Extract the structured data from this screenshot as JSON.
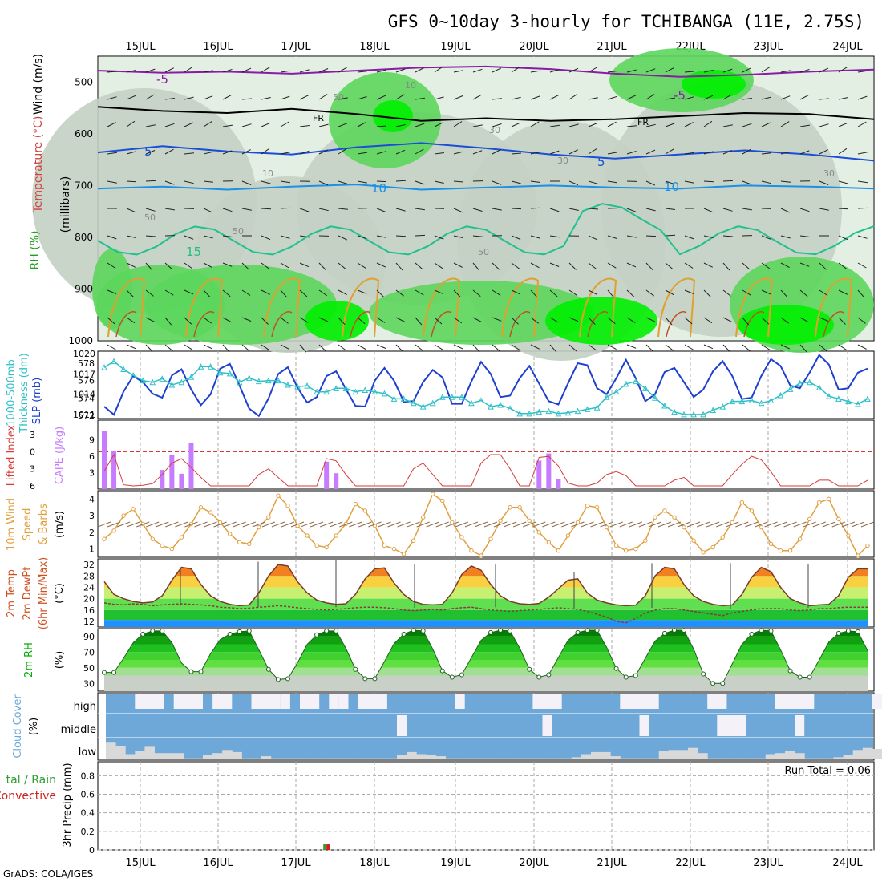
{
  "title": "GFS 0~10day 3-hourly for TCHIBANGA (11E, 2.75S)",
  "credit": "GrADS: COLA/IGES",
  "dates": [
    "15JUL",
    "16JUL",
    "17JUL",
    "18JUL",
    "19JUL",
    "20JUL",
    "21JUL",
    "22JUL",
    "23JUL",
    "24JUL"
  ],
  "colors": {
    "rh_light": "#e4efe3",
    "rh_mid": "#c3d0c3",
    "rh_green": "#5cd65c",
    "rh_bright": "#00f000",
    "slp": "#1e3fcf",
    "thickness": "#2ec0c8",
    "cape": "#c77cff",
    "li": "#d83a3a",
    "wind": "#e0a040",
    "barb": "#8b6a4a",
    "temp": "#f08020",
    "dew": "#8a3a3a",
    "rh2m": "#00b000",
    "cloud": "#6ea8d8",
    "cloud_low": "#d9d9d9",
    "precip": "#30a030"
  },
  "panel_labels": {
    "upper": {
      "wind": "Wind",
      "unit_ms": "(m/s)",
      "temperature": "Temperature",
      "unit_c": "(°C)",
      "rh": "RH (%)",
      "mb": "(millibars)"
    },
    "thickness": {
      "label": "1000-500mb",
      "label2": "Thickness (dm)",
      "slp": "SLP (mb)"
    },
    "cape": {
      "li": "Lifted Index",
      "cape": "CAPE (J/kg)"
    },
    "wind10": {
      "l1": "10m Wind",
      "l2": "Speed",
      "l3": "& Barbs",
      "unit": "(m/s)"
    },
    "temp2m": {
      "l1": "2m Temp",
      "l2": "2m DewPt",
      "l3": "(6hr Min/Max)",
      "unit": "(°C)"
    },
    "rh2m": {
      "l1": "2m RH",
      "unit": "(%)"
    },
    "cloud": {
      "l1": "Cloud Cover",
      "unit": "(%)",
      "high": "high",
      "middle": "middle",
      "low": "low"
    },
    "precip": {
      "l1": "tal / Rain",
      "l2": "Convective",
      "l3": "3hr Precip (mm)",
      "run_total": "Run Total = 0.06"
    }
  },
  "contour_labels": {
    "upper_m5": "-5",
    "fr": "FR",
    "m5": "5",
    "m10": "10",
    "m15": "15",
    "rh10": "10",
    "rh30": "30",
    "rh50": "50"
  },
  "chart_data": [
    {
      "type": "contour",
      "title": "Upper-air RH / Temperature / Wind",
      "ylabel": "millibars",
      "yticks": [
        500,
        600,
        700,
        800,
        900,
        1000
      ],
      "ylim": [
        450,
        1000
      ],
      "isotherms": [
        {
          "label": "-5",
          "p": [
            478,
            482,
            480,
            484,
            478,
            472,
            470,
            475,
            484,
            490,
            486,
            480,
            476
          ]
        },
        {
          "label": "FR",
          "p": [
            548,
            556,
            560,
            552,
            562,
            575,
            570,
            575,
            572,
            566,
            560,
            562,
            572
          ]
        },
        {
          "label": "5",
          "p": [
            636,
            624,
            634,
            640,
            626,
            618,
            628,
            640,
            648,
            640,
            632,
            640,
            652
          ]
        },
        {
          "label": "10",
          "p": [
            706,
            702,
            708,
            702,
            698,
            708,
            704,
            700,
            704,
            706,
            700,
            702,
            706
          ]
        }
      ]
    },
    {
      "type": "line",
      "title": "1000-500mb Thickness & SLP",
      "x_start": 0,
      "x_step_hours": 3,
      "series": [
        {
          "name": "SLP (mb)",
          "axis": "right",
          "values": [
            1012.3,
            1011.1,
            1014.5,
            1016.8,
            1015.9,
            1014.2,
            1013.6,
            1016.9,
            1017.8,
            1014.8,
            1012.5,
            1014.1,
            1017.9,
            1018.6,
            1015.4,
            1012.0,
            1010.9,
            1013.5,
            1017.1,
            1018.1,
            1015.1,
            1012.9,
            1013.7,
            1016.8,
            1017.5,
            1014.9,
            1012.4,
            1012.3,
            1016.1,
            1018.0,
            1016.1,
            1013.0,
            1013.1,
            1015.9,
            1017.7,
            1016.6,
            1012.7,
            1012.7,
            1016.0,
            1018.9,
            1017.1,
            1013.7,
            1013.9,
            1016.5,
            1018.3,
            1015.7,
            1013.1,
            1012.6,
            1015.7,
            1018.7,
            1018.4,
            1015.0,
            1014.1,
            1016.5,
            1019.2,
            1016.5,
            1013.1,
            1014.1,
            1017.4,
            1018.0,
            1015.9,
            1013.7,
            1014.8,
            1017.5,
            1019.0,
            1016.8,
            1013.4,
            1013.6,
            1016.8,
            1019.3,
            1018.3,
            1015.4,
            1015.0,
            1017.3,
            1019.9,
            1018.5,
            1014.8,
            1015.0,
            1017.3,
            1017.9
          ]
        },
        {
          "name": "Thickness (dm)",
          "axis": "left",
          "values": [
            577.5,
            578.2,
            577.3,
            576.6,
            576.0,
            575.8,
            576.2,
            575.5,
            575.8,
            576.4,
            577.6,
            577.6,
            576.9,
            576.8,
            575.8,
            576.3,
            575.9,
            576.0,
            576.0,
            575.5,
            575.3,
            575.4,
            574.7,
            574.7,
            575.1,
            575.1,
            574.7,
            574.9,
            574.7,
            574.5,
            573.9,
            573.9,
            573.4,
            573.0,
            573.4,
            574.1,
            574.1,
            574.1,
            573.4,
            573.7,
            573.0,
            573.2,
            572.8,
            572.2,
            572.2,
            572.4,
            572.5,
            572.2,
            572.3,
            572.5,
            572.7,
            572.9,
            574.1,
            574.7,
            575.6,
            575.9,
            575.1,
            574.0,
            573.1,
            572.4,
            572.1,
            572.1,
            572.1,
            572.6,
            573.0,
            573.6,
            573.6,
            573.7,
            573.4,
            573.7,
            574.3,
            575.0,
            575.7,
            575.8,
            575.2,
            574.2,
            573.9,
            573.6,
            573.3,
            573.9
          ]
        }
      ],
      "ylim_left": [
        572,
        579
      ],
      "ylim_right": [
        1011,
        1020
      ]
    },
    {
      "type": "bar",
      "title": "CAPE and Lifted Index",
      "bars_name": "CAPE (J/kg)",
      "bars": [
        {
          "i": 0,
          "v": 10.6
        },
        {
          "i": 1,
          "v": 7.0
        },
        {
          "i": 6,
          "v": 3.5
        },
        {
          "i": 7,
          "v": 6.3
        },
        {
          "i": 8,
          "v": 2.8
        },
        {
          "i": 9,
          "v": 8.4
        },
        {
          "i": 23,
          "v": 5.0
        },
        {
          "i": 24,
          "v": 2.9
        },
        {
          "i": 45,
          "v": 5.2
        },
        {
          "i": 46,
          "v": 6.5
        },
        {
          "i": 47,
          "v": 1.8
        }
      ],
      "li_name": "Lifted Index",
      "li": [
        3.4,
        0.5,
        5.8,
        6.0,
        5.9,
        5.6,
        4.0,
        2.0,
        1.2,
        2.8,
        4.5,
        6.0,
        6.0,
        6.0,
        6.0,
        6.0,
        4.0,
        3.0,
        4.5,
        6.0,
        6.0,
        6.0,
        6.0,
        1.2,
        1.6,
        4.0,
        6.0,
        6.0,
        6.0,
        6.0,
        6.0,
        6.0,
        3.0,
        2.0,
        4.0,
        6.0,
        6.0,
        6.0,
        6.0,
        2.0,
        0.5,
        0.5,
        3.0,
        6.0,
        6.0,
        1.0,
        0.8,
        2.5,
        5.5,
        6.0,
        6.0,
        5.5,
        4.0,
        3.5,
        4.2,
        6.0,
        6.0,
        6.0,
        6.0,
        5.0,
        4.5,
        6.0,
        6.0,
        6.0,
        6.0,
        4.0,
        2.2,
        0.8,
        1.4,
        3.5,
        6.0,
        6.0,
        6.0,
        6.0,
        5.0,
        5.0,
        6.0,
        6.0,
        6.0,
        5.0
      ],
      "ylim_cape": [
        0,
        12
      ],
      "ylim_li": [
        6,
        -5
      ],
      "threshold_li": 0
    },
    {
      "type": "line",
      "title": "10m Wind Speed & Barbs",
      "ylabel": "(m/s)",
      "ylim": [
        0.5,
        4.5
      ],
      "values": [
        1.6,
        2.1,
        3.0,
        3.4,
        2.5,
        1.6,
        1.2,
        1.0,
        1.7,
        2.5,
        3.5,
        3.2,
        2.6,
        1.9,
        1.4,
        1.3,
        2.3,
        2.9,
        4.2,
        3.6,
        2.4,
        1.8,
        1.2,
        1.1,
        1.8,
        2.5,
        3.7,
        3.3,
        2.4,
        1.2,
        1.0,
        0.7,
        1.5,
        2.9,
        4.3,
        3.9,
        2.6,
        1.7,
        0.9,
        0.6,
        1.6,
        2.7,
        3.5,
        3.5,
        2.7,
        2.0,
        1.4,
        0.9,
        1.8,
        2.6,
        3.6,
        3.5,
        2.3,
        1.2,
        0.9,
        1.0,
        1.5,
        2.9,
        3.3,
        2.9,
        2.3,
        1.5,
        0.8,
        1.1,
        1.7,
        2.6,
        3.8,
        3.3,
        2.3,
        1.3,
        0.9,
        0.9,
        1.6,
        2.8,
        3.8,
        4.0,
        2.8,
        1.8,
        0.6,
        1.2
      ]
    },
    {
      "type": "area",
      "title": "2m Temperature & Dew Point",
      "ylabel": "(°C)",
      "yticks": [
        12,
        16,
        20,
        24,
        28,
        32
      ],
      "ylim": [
        10,
        34
      ],
      "temp": [
        26.0,
        21.5,
        20.0,
        19.0,
        18.5,
        18.8,
        21.0,
        26.5,
        31.0,
        30.5,
        25.0,
        21.0,
        19.0,
        18.0,
        17.5,
        17.8,
        22.0,
        28.0,
        32.0,
        31.5,
        26.0,
        22.0,
        19.5,
        18.5,
        18.0,
        18.2,
        21.5,
        27.0,
        30.5,
        30.8,
        25.5,
        21.5,
        19.0,
        18.0,
        17.8,
        18.0,
        22.0,
        28.5,
        31.5,
        30.0,
        25.0,
        21.0,
        19.0,
        18.2,
        18.0,
        18.3,
        20.5,
        23.5,
        26.5,
        27.0,
        22.0,
        19.5,
        18.5,
        17.8,
        17.5,
        17.7,
        21.0,
        28.0,
        31.0,
        30.5,
        25.0,
        21.0,
        19.0,
        18.0,
        17.5,
        17.8,
        21.5,
        27.5,
        31.0,
        29.5,
        24.0,
        20.0,
        18.5,
        17.5,
        17.8,
        18.0,
        21.0,
        27.5,
        30.5,
        30.5
      ],
      "dewpoint": [
        18.5,
        18.0,
        17.8,
        18.2,
        18.0,
        17.5,
        17.8,
        18.0,
        18.2,
        18.0,
        17.8,
        17.5,
        17.0,
        16.8,
        16.5,
        16.6,
        17.0,
        17.2,
        17.5,
        17.2,
        16.8,
        16.5,
        16.2,
        16.0,
        16.2,
        16.5,
        16.8,
        17.0,
        17.0,
        16.8,
        16.5,
        16.0,
        15.8,
        16.0,
        16.2,
        16.0,
        16.5,
        16.8,
        17.0,
        16.5,
        16.0,
        15.8,
        15.5,
        15.8,
        16.0,
        16.2,
        16.5,
        16.8,
        16.5,
        16.2,
        15.5,
        14.5,
        13.5,
        12.0,
        11.5,
        13.0,
        15.0,
        16.0,
        16.5,
        16.5,
        16.0,
        15.5,
        15.0,
        14.5,
        14.0,
        15.0,
        15.5,
        16.0,
        16.5,
        16.5,
        16.5,
        16.0,
        15.8,
        16.0,
        16.5,
        16.5,
        16.8,
        17.0,
        17.0,
        17.0
      ],
      "max_marks": [
        31.0,
        33.0,
        33.5,
        32.0,
        32.0,
        29.5,
        32.5,
        32.5,
        32.0,
        32.0
      ],
      "min_marks": [
        17.5,
        17.0,
        17.0,
        16.8,
        17.0,
        16.5,
        16.8,
        16.5,
        16.8,
        17.0
      ]
    },
    {
      "type": "area",
      "title": "2m RH",
      "ylabel": "(%)",
      "yticks": [
        30,
        50,
        70,
        90
      ],
      "ylim": [
        20,
        100
      ],
      "values": [
        44,
        44,
        62,
        82,
        93,
        97,
        97,
        82,
        56,
        45,
        45,
        68,
        86,
        93,
        96,
        97,
        73,
        48,
        35,
        36,
        56,
        80,
        92,
        97,
        97,
        75,
        48,
        36,
        36,
        58,
        81,
        93,
        98,
        97,
        74,
        46,
        38,
        41,
        63,
        85,
        95,
        98,
        97,
        75,
        48,
        38,
        41,
        63,
        85,
        95,
        98,
        98,
        76,
        49,
        38,
        40,
        62,
        84,
        94,
        98,
        98,
        74,
        42,
        30,
        30,
        55,
        80,
        93,
        98,
        97,
        73,
        46,
        38,
        38,
        60,
        83,
        94,
        97,
        96,
        72
      ]
    },
    {
      "type": "bar",
      "title": "Cloud Cover",
      "ylabel": "(%)",
      "levels": [
        "high",
        "middle",
        "low"
      ],
      "high_clear_ranges": [
        [
          3,
          6
        ],
        [
          7,
          10
        ],
        [
          11,
          13
        ],
        [
          15,
          18
        ],
        [
          18,
          19
        ],
        [
          20,
          22
        ],
        [
          23,
          24
        ],
        [
          24,
          25
        ],
        [
          26,
          29
        ],
        [
          36,
          37
        ],
        [
          44,
          46
        ],
        [
          46,
          47
        ],
        [
          53,
          57
        ],
        [
          62,
          64
        ],
        [
          69,
          71
        ],
        [
          71,
          73
        ],
        [
          79,
          80
        ]
      ],
      "middle_gap_ranges": [
        [
          30,
          31
        ],
        [
          45,
          46
        ],
        [
          55,
          56
        ],
        [
          63,
          66
        ],
        [
          71,
          72
        ]
      ],
      "low_fill": [
        80,
        65,
        25,
        40,
        60,
        30,
        30,
        30,
        5,
        5,
        20,
        30,
        45,
        35,
        5,
        5,
        15,
        5,
        5,
        5,
        5,
        5,
        5,
        5,
        5,
        5,
        5,
        5,
        5,
        5,
        20,
        35,
        25,
        20,
        15,
        5,
        5,
        5,
        5,
        5,
        5,
        5,
        5,
        5,
        5,
        5,
        5,
        5,
        10,
        25,
        35,
        35,
        15,
        5,
        5,
        5,
        5,
        40,
        45,
        45,
        55,
        30,
        5,
        5,
        5,
        5,
        5,
        5,
        25,
        30,
        40,
        30,
        5,
        5,
        5,
        10,
        20,
        45,
        55,
        50
      ]
    },
    {
      "type": "bar",
      "title": "3hr Precip",
      "ylabel": "3hr Precip (mm)",
      "yticks": [
        0,
        0.2,
        0.4,
        0.6,
        0.8
      ],
      "ylim": [
        0,
        0.95
      ],
      "bars": [
        {
          "i": 23,
          "total": 0.06,
          "convective": 0.06
        }
      ],
      "run_total": 0.06
    }
  ]
}
